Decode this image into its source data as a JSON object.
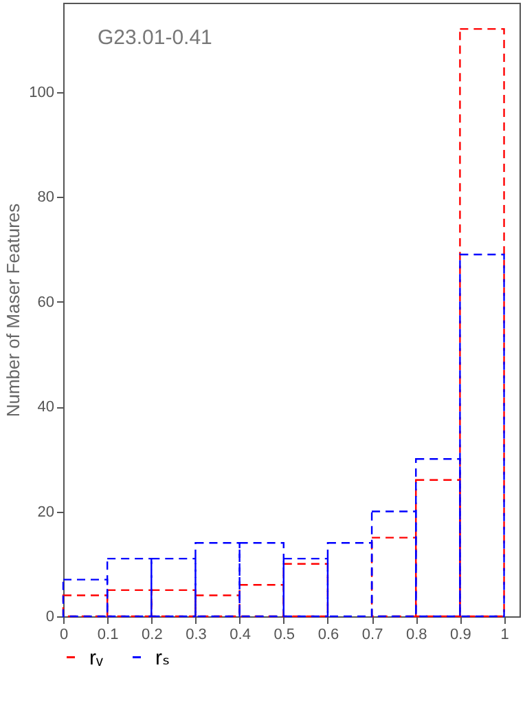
{
  "chart_data": {
    "type": "histogram",
    "ylabel": "Number of Maser Features",
    "annotations": [
      "G23.01-0.41"
    ],
    "bins": [
      0,
      0.1,
      0.2,
      0.3,
      0.4,
      0.5,
      0.6,
      0.7,
      0.8,
      0.9,
      1
    ],
    "series": [
      {
        "name": "rᵥ",
        "color": "#ff0000",
        "values": [
          4,
          5,
          5,
          4,
          6,
          10,
          null,
          15,
          26,
          112
        ]
      },
      {
        "name": "rₛ",
        "color": "#0000ff",
        "values": [
          7,
          11,
          11,
          14,
          14,
          11,
          14,
          20,
          30,
          69
        ]
      }
    ],
    "xlim": [
      0,
      1.035
    ],
    "xticks": [
      0,
      0.1,
      0.2,
      0.3,
      0.4,
      0.5,
      0.6,
      0.7,
      0.8,
      0.9,
      1
    ],
    "ylim": [
      0,
      117
    ],
    "yticks": [
      0,
      20,
      40,
      60,
      80,
      100
    ],
    "grid": false,
    "legend": "bottom",
    "line_style": "dashed"
  }
}
